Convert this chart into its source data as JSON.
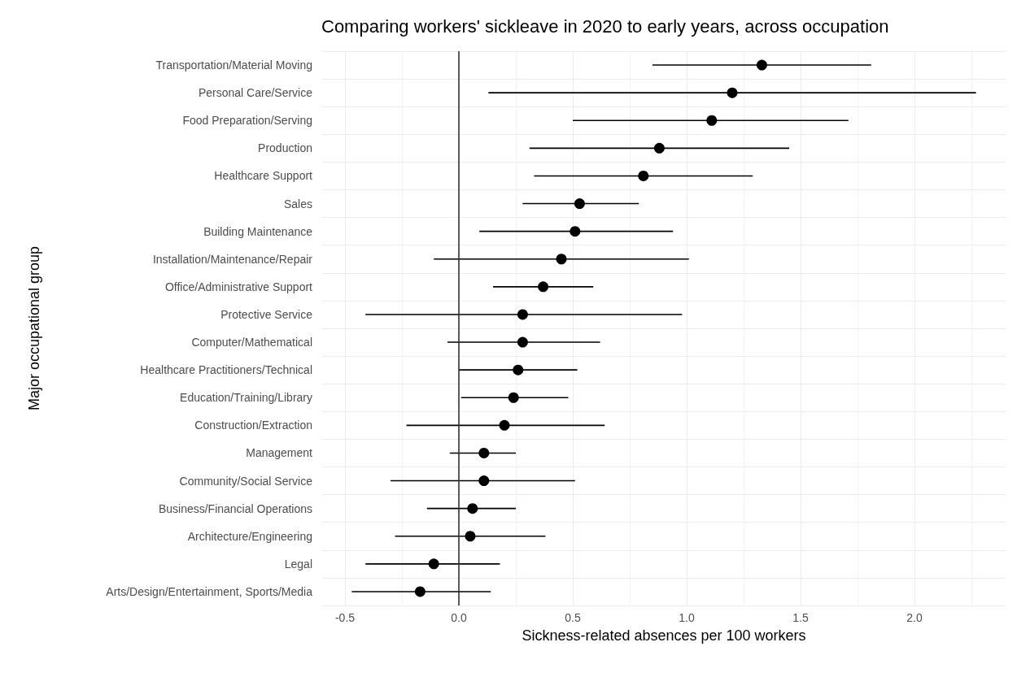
{
  "chart_data": {
    "type": "scatter",
    "orientation": "horizontal",
    "title": "Comparing workers' sickleave in 2020 to early years, across occupation",
    "xlabel": "Sickness-related absences per 100 workers",
    "ylabel": "Major occupational group",
    "categories": [
      "Transportation/Material Moving",
      "Personal Care/Service",
      "Food Preparation/Serving",
      "Production",
      "Healthcare Support",
      "Sales",
      "Building Maintenance",
      "Installation/Maintenance/Repair",
      "Office/Administrative Support",
      "Protective Service",
      "Computer/Mathematical",
      "Healthcare Practitioners/Technical",
      "Education/Training/Library",
      "Construction/Extraction",
      "Management",
      "Community/Social Service",
      "Business/Financial Operations",
      "Architecture/Engineering",
      "Legal",
      "Arts/Design/Entertainment, Sports/Media"
    ],
    "series": [
      {
        "color": "#000000",
        "values": [
          1.33,
          1.2,
          1.11,
          0.88,
          0.81,
          0.53,
          0.51,
          0.45,
          0.37,
          0.28,
          0.28,
          0.26,
          0.24,
          0.2,
          0.11,
          0.11,
          0.06,
          0.05,
          -0.11,
          -0.17
        ],
        "errors": [
          [
            0.85,
            1.81
          ],
          [
            0.13,
            2.27
          ],
          [
            0.5,
            1.71
          ],
          [
            0.31,
            1.45
          ],
          [
            0.33,
            1.29
          ],
          [
            0.28,
            0.79
          ],
          [
            0.09,
            0.94
          ],
          [
            -0.11,
            1.01
          ],
          [
            0.15,
            0.59
          ],
          [
            -0.41,
            0.98
          ],
          [
            -0.05,
            0.62
          ],
          [
            0.0,
            0.52
          ],
          [
            0.01,
            0.48
          ],
          [
            -0.23,
            0.64
          ],
          [
            -0.04,
            0.25
          ],
          [
            -0.3,
            0.51
          ],
          [
            -0.14,
            0.25
          ],
          [
            -0.28,
            0.38
          ],
          [
            -0.41,
            0.18
          ],
          [
            -0.47,
            0.14
          ]
        ]
      }
    ],
    "xlim": [
      -0.6,
      2.4
    ],
    "xticks": [
      {
        "value": -0.5,
        "label": "-0.5"
      },
      {
        "value": 0,
        "label": "0.0"
      },
      {
        "value": 0.5,
        "label": "0.5"
      },
      {
        "value": 1,
        "label": "1.0"
      },
      {
        "value": 1.5,
        "label": "1.5"
      },
      {
        "value": 2,
        "label": "2.0"
      }
    ],
    "ref_lines": [
      {
        "axis": "x",
        "value": 0,
        "color": "#333333"
      }
    ],
    "grid": true,
    "marker": "circle"
  }
}
